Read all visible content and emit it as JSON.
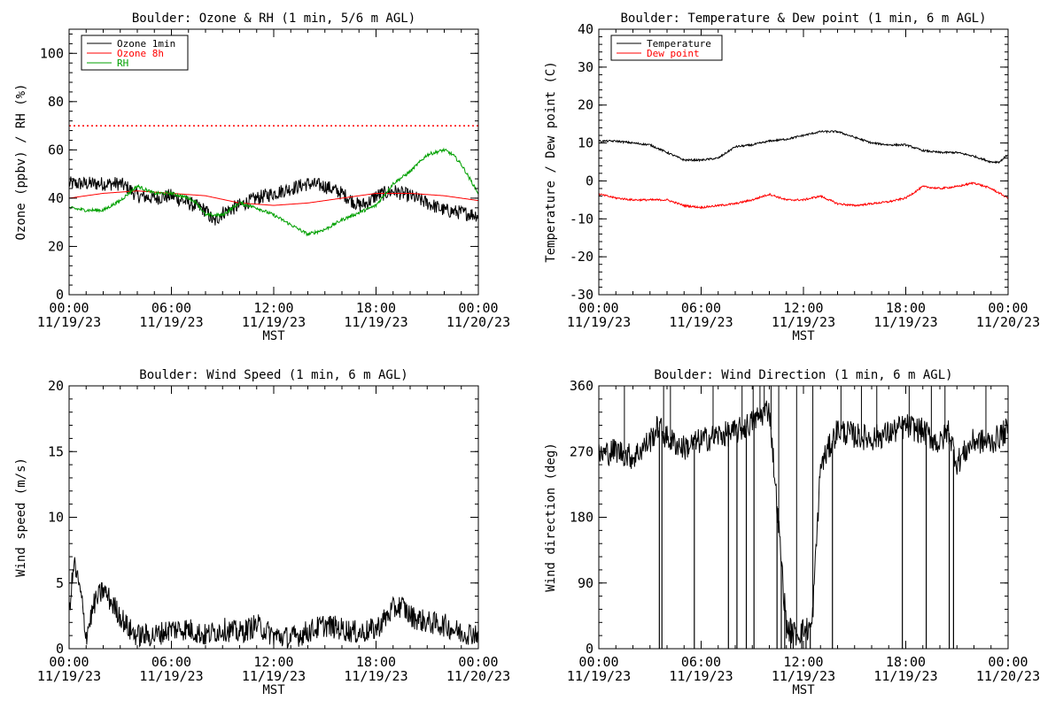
{
  "chart_data": [
    {
      "type": "line",
      "title": "Boulder: Ozone & RH (1 min, 5/6 m AGL)",
      "ylabel": "Ozone (ppbv) / RH (%)",
      "xlabel": "MST",
      "x_ticks": [
        {
          "time": "00:00",
          "date": "11/19/23"
        },
        {
          "time": "06:00",
          "date": "11/19/23"
        },
        {
          "time": "12:00",
          "date": "11/19/23"
        },
        {
          "time": "18:00",
          "date": "11/19/23"
        },
        {
          "time": "00:00",
          "date": "11/20/23"
        }
      ],
      "xlim": [
        0,
        24
      ],
      "ylim": [
        0,
        110
      ],
      "y_ticks": [
        0,
        20,
        40,
        60,
        80,
        100
      ],
      "legend_position": "top-left",
      "reference_line": {
        "y": 70,
        "color": "#ff0000",
        "style": "dotted"
      },
      "series": [
        {
          "name": "Ozone 1min",
          "color": "#000000",
          "noise": 3,
          "x": [
            0,
            1,
            2,
            3,
            3.5,
            4,
            5,
            6,
            7,
            8,
            8.5,
            9,
            10,
            11,
            12,
            13,
            14,
            15,
            16,
            17,
            17.5,
            18,
            19,
            20,
            21,
            22,
            23,
            24
          ],
          "y": [
            46,
            46,
            46,
            46,
            44,
            41,
            40,
            41,
            38,
            35,
            30,
            34,
            37,
            40,
            42,
            44,
            46,
            45,
            42,
            37,
            38,
            41,
            43,
            41,
            38,
            35,
            34,
            33
          ]
        },
        {
          "name": "Ozone 8h",
          "color": "#ff0000",
          "noise": 0,
          "x": [
            0,
            2,
            4,
            6,
            8,
            10,
            12,
            14,
            16,
            17,
            18,
            20,
            22,
            24
          ],
          "y": [
            40,
            42,
            43,
            42,
            41,
            38,
            37,
            38,
            40,
            41,
            42,
            42,
            41,
            39
          ]
        },
        {
          "name": "RH",
          "color": "#00a000",
          "noise": 0.7,
          "x": [
            0,
            1,
            2,
            3,
            4,
            5,
            6,
            7,
            7.5,
            8,
            9,
            10,
            11,
            12,
            13,
            14,
            15,
            16,
            17,
            18,
            19,
            20,
            21,
            22,
            22.5,
            23,
            24
          ],
          "y": [
            36,
            35,
            35,
            39,
            45,
            42,
            42,
            40,
            38,
            33,
            33,
            38,
            36,
            33,
            29,
            25,
            27,
            31,
            34,
            37,
            46,
            51,
            58,
            60,
            58,
            54,
            42
          ]
        }
      ]
    },
    {
      "type": "line",
      "title": "Boulder: Temperature & Dew point (1 min, 6 m AGL)",
      "ylabel": "Temperature / Dew point (C)",
      "xlabel": "MST",
      "x_ticks": [
        {
          "time": "00:00",
          "date": "11/19/23"
        },
        {
          "time": "06:00",
          "date": "11/19/23"
        },
        {
          "time": "12:00",
          "date": "11/19/23"
        },
        {
          "time": "18:00",
          "date": "11/19/23"
        },
        {
          "time": "00:00",
          "date": "11/20/23"
        }
      ],
      "xlim": [
        0,
        24
      ],
      "ylim": [
        -30,
        40
      ],
      "y_ticks": [
        -30,
        -20,
        -10,
        0,
        10,
        20,
        30,
        40
      ],
      "legend_position": "top-left",
      "series": [
        {
          "name": "Temperature",
          "color": "#000000",
          "noise": 0.25,
          "x": [
            0,
            1,
            2,
            3,
            4,
            5,
            6,
            7,
            8,
            9,
            10,
            11,
            12,
            13,
            14,
            15,
            16,
            17,
            18,
            19,
            20,
            21,
            22,
            23,
            23.5,
            24
          ],
          "y": [
            10.5,
            10.5,
            10,
            9.5,
            7.5,
            5.5,
            5.5,
            6,
            9,
            9.5,
            10.5,
            11,
            12,
            13,
            13,
            11.5,
            10,
            9.5,
            9.5,
            8,
            7.5,
            7.5,
            6.5,
            5,
            5,
            7
          ]
        },
        {
          "name": "Dew point",
          "color": "#ff0000",
          "noise": 0.25,
          "x": [
            0,
            1,
            2,
            3,
            4,
            5,
            6,
            7,
            8,
            9,
            10,
            11,
            12,
            13,
            14,
            15,
            16,
            17,
            18,
            19,
            20,
            21,
            22,
            23,
            24
          ],
          "y": [
            -3.5,
            -4.5,
            -5,
            -5,
            -5,
            -6.5,
            -7,
            -6.5,
            -6,
            -5,
            -3.5,
            -5,
            -5,
            -4,
            -6,
            -6.5,
            -6,
            -5.5,
            -4.5,
            -1.5,
            -2,
            -1.5,
            -0.5,
            -2,
            -4.5
          ]
        }
      ]
    },
    {
      "type": "line",
      "title": "Boulder: Wind Speed (1 min, 6 m AGL)",
      "ylabel": "Wind speed (m/s)",
      "xlabel": "MST",
      "x_ticks": [
        {
          "time": "00:00",
          "date": "11/19/23"
        },
        {
          "time": "06:00",
          "date": "11/19/23"
        },
        {
          "time": "12:00",
          "date": "11/19/23"
        },
        {
          "time": "18:00",
          "date": "11/19/23"
        },
        {
          "time": "00:00",
          "date": "11/20/23"
        }
      ],
      "xlim": [
        0,
        24
      ],
      "ylim": [
        0,
        20
      ],
      "y_ticks": [
        0,
        5,
        10,
        15,
        20
      ],
      "series": [
        {
          "name": "",
          "color": "#000000",
          "noise": 0.9,
          "x": [
            0,
            0.3,
            0.7,
            1,
            1.5,
            2,
            2.5,
            3,
            3.5,
            4,
            5,
            6,
            7,
            8,
            9,
            10,
            11,
            12,
            13,
            14,
            15,
            16,
            17,
            18,
            19,
            19.5,
            20,
            21,
            22,
            23,
            24
          ],
          "y": [
            3,
            6.5,
            4,
            1,
            3.5,
            4.5,
            3.5,
            2.5,
            1.5,
            1,
            1,
            1.5,
            1.5,
            1,
            1.5,
            1.2,
            1.8,
            1,
            0.8,
            1.3,
            1.8,
            1.5,
            1.2,
            1.5,
            3,
            3.3,
            2.5,
            2,
            1.8,
            1.2,
            1.2
          ]
        }
      ]
    },
    {
      "type": "line",
      "title": "Boulder: Wind Direction (1 min, 6 m AGL)",
      "ylabel": "Wind direction (deg)",
      "xlabel": "MST",
      "x_ticks": [
        {
          "time": "00:00",
          "date": "11/19/23"
        },
        {
          "time": "06:00",
          "date": "11/19/23"
        },
        {
          "time": "12:00",
          "date": "11/19/23"
        },
        {
          "time": "18:00",
          "date": "11/19/23"
        },
        {
          "time": "00:00",
          "date": "11/20/23"
        }
      ],
      "xlim": [
        0,
        24
      ],
      "ylim": [
        0,
        360
      ],
      "y_ticks": [
        0,
        90,
        180,
        270,
        360
      ],
      "series": [
        {
          "name": "",
          "color": "#000000",
          "noise": 18,
          "x": [
            0,
            1,
            2,
            3,
            3.5,
            4,
            5,
            6,
            7,
            8,
            9,
            10,
            10.5,
            11,
            11.5,
            12,
            12.5,
            13,
            14,
            15,
            16,
            17,
            18,
            19,
            20,
            20.5,
            21,
            22,
            23,
            24
          ],
          "y": [
            265,
            272,
            262,
            285,
            305,
            288,
            275,
            285,
            292,
            296,
            310,
            330,
            180,
            30,
            20,
            25,
            30,
            250,
            300,
            292,
            288,
            295,
            305,
            298,
            280,
            300,
            255,
            285,
            282,
            300
          ]
        }
      ],
      "spikes_to_zero_at": [
        3.55,
        3.7,
        5.6,
        7.6,
        8.1,
        8.65,
        9.1,
        10.45,
        10.7,
        10.9,
        11.25,
        11.4,
        11.9,
        12.15,
        12.4,
        13.7,
        17.8,
        19.2,
        20.55,
        20.8
      ],
      "spikes_to_top_at": [
        1.5,
        3.8,
        4.2,
        6.7,
        8.4,
        9.05,
        9.45,
        9.7,
        10.1,
        10.55,
        11.6,
        12.55,
        14.2,
        15.4,
        16.3,
        18.2,
        19.5,
        20.3,
        22.7
      ]
    }
  ]
}
